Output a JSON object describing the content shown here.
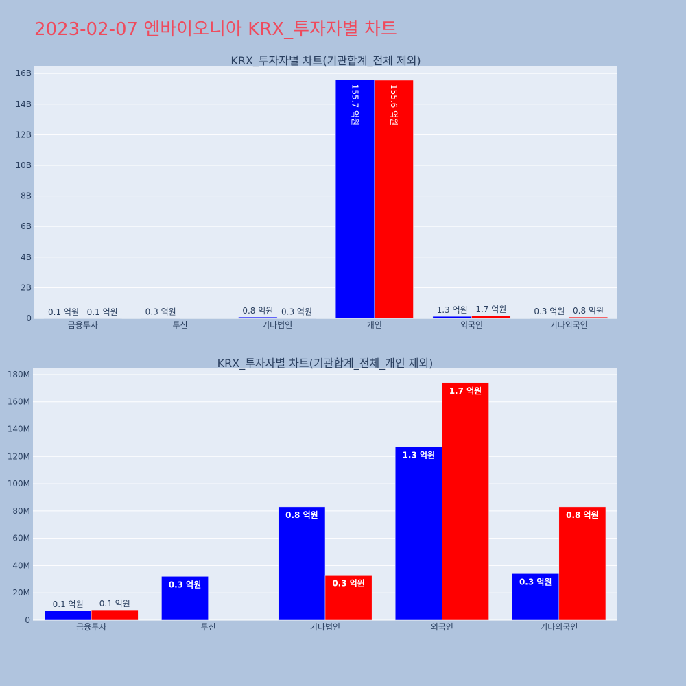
{
  "page_title": "2023-02-07 엔바이오니아 KRX_투자자별 차트",
  "colors": {
    "series1": "#0000ff",
    "series2": "#ff0000",
    "plot_bg": "#e5ecf6",
    "page_bg": "#b0c4de",
    "title": "#ef4b5d"
  },
  "chart_data": [
    {
      "type": "bar",
      "title": "KRX_투자자별 차트(기관합계_전체 제외)",
      "categories": [
        "금융투자",
        "투신",
        "기타법인",
        "개인",
        "외국인",
        "기타외국인"
      ],
      "series": [
        {
          "values": [
            7000000,
            32000000,
            83000000,
            15570000000,
            127000000,
            34000000
          ],
          "labels": [
            "0.1 억원",
            "0.3 억원",
            "0.8 억원",
            "155.7 억원",
            "1.3 억원",
            "0.3 억원"
          ]
        },
        {
          "values": [
            7500000,
            0,
            33000000,
            15560000000,
            174000000,
            83000000
          ],
          "labels": [
            "0.1 억원",
            "",
            "0.3 억원",
            "155.6 억원",
            "1.7 억원",
            "0.8 억원"
          ]
        }
      ],
      "ylim": [
        0,
        16500000000
      ],
      "yticks": [
        0,
        2000000000,
        4000000000,
        6000000000,
        8000000000,
        10000000000,
        12000000000,
        14000000000,
        16000000000
      ],
      "ytick_labels": [
        "0",
        "2B",
        "4B",
        "6B",
        "8B",
        "10B",
        "12B",
        "14B",
        "16B"
      ],
      "label_mode": "rotated_inside_when_tall",
      "grid": true
    },
    {
      "type": "bar",
      "title": "KRX_투자자별 차트(기관합계_전체_개인 제외)",
      "categories": [
        "금융투자",
        "투신",
        "기타법인",
        "외국인",
        "기타외국인"
      ],
      "series": [
        {
          "values": [
            7000000,
            32000000,
            83000000,
            127000000,
            34000000
          ],
          "labels": [
            "0.1 억원",
            "0.3 억원",
            "0.8 억원",
            "1.3 억원",
            "0.3 억원"
          ]
        },
        {
          "values": [
            7500000,
            0,
            33000000,
            174000000,
            83000000
          ],
          "labels": [
            "0.1 억원",
            "",
            "0.3 억원",
            "1.7 억원",
            "0.8 억원"
          ]
        }
      ],
      "ylim": [
        0,
        185000000
      ],
      "yticks": [
        0,
        20000000,
        40000000,
        60000000,
        80000000,
        100000000,
        120000000,
        140000000,
        160000000,
        180000000
      ],
      "ytick_labels": [
        "0",
        "20M",
        "40M",
        "60M",
        "80M",
        "100M",
        "120M",
        "140M",
        "160M",
        "180M"
      ],
      "label_mode": "inside_bold_when_tall",
      "grid": true
    }
  ]
}
